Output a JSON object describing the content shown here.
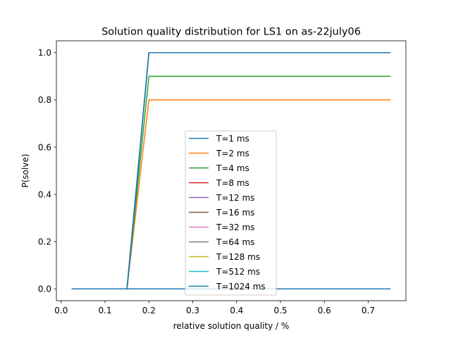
{
  "chart_data": {
    "type": "line",
    "title": "Solution quality distribution for LS1 on as-22july06",
    "xlabel": "relative solution quality / %",
    "ylabel": "P(solve)",
    "xlim": [
      -0.011,
      0.786
    ],
    "ylim": [
      -0.05,
      1.05
    ],
    "xticks": [
      0.0,
      0.1,
      0.2,
      0.3,
      0.4,
      0.5,
      0.6,
      0.7
    ],
    "xtick_labels": [
      "0.0",
      "0.1",
      "0.2",
      "0.3",
      "0.4",
      "0.5",
      "0.6",
      "0.7"
    ],
    "yticks": [
      0.0,
      0.2,
      0.4,
      0.6,
      0.8,
      1.0
    ],
    "ytick_labels": [
      "0.0",
      "0.2",
      "0.4",
      "0.6",
      "0.8",
      "1.0"
    ],
    "grid": false,
    "legend_position": "lower center",
    "series": [
      {
        "name": "T=1 ms",
        "color": "#1f77b4",
        "x": [
          0.025,
          0.75
        ],
        "y": [
          0.0,
          0.0
        ]
      },
      {
        "name": "T=2 ms",
        "color": "#ff7f0e",
        "x": [
          0.025,
          0.15,
          0.2,
          0.75
        ],
        "y": [
          0.0,
          0.0,
          0.8,
          0.8
        ]
      },
      {
        "name": "T=4 ms",
        "color": "#2ca02c",
        "x": [
          0.025,
          0.15,
          0.2,
          0.75
        ],
        "y": [
          0.0,
          0.0,
          0.9,
          0.9
        ]
      },
      {
        "name": "T=8 ms",
        "color": "#d62728",
        "x": [
          0.025,
          0.15,
          0.2,
          0.75
        ],
        "y": [
          0.0,
          0.0,
          1.0,
          1.0
        ]
      },
      {
        "name": "T=12 ms",
        "color": "#9467bd",
        "x": [
          0.025,
          0.15,
          0.2,
          0.75
        ],
        "y": [
          0.0,
          0.0,
          1.0,
          1.0
        ]
      },
      {
        "name": "T=16 ms",
        "color": "#8c564b",
        "x": [
          0.025,
          0.15,
          0.2,
          0.75
        ],
        "y": [
          0.0,
          0.0,
          1.0,
          1.0
        ]
      },
      {
        "name": "T=32 ms",
        "color": "#e377c2",
        "x": [
          0.025,
          0.15,
          0.2,
          0.75
        ],
        "y": [
          0.0,
          0.0,
          1.0,
          1.0
        ]
      },
      {
        "name": "T=64 ms",
        "color": "#7f7f7f",
        "x": [
          0.025,
          0.15,
          0.2,
          0.75
        ],
        "y": [
          0.0,
          0.0,
          1.0,
          1.0
        ]
      },
      {
        "name": "T=128 ms",
        "color": "#bcbd22",
        "x": [
          0.025,
          0.15,
          0.2,
          0.75
        ],
        "y": [
          0.0,
          0.0,
          1.0,
          1.0
        ]
      },
      {
        "name": "T=512 ms",
        "color": "#17becf",
        "x": [
          0.025,
          0.15,
          0.2,
          0.75
        ],
        "y": [
          0.0,
          0.0,
          1.0,
          1.0
        ]
      },
      {
        "name": "T=1024 ms",
        "color": "#1f77b4",
        "x": [
          0.025,
          0.15,
          0.2,
          0.75
        ],
        "y": [
          0.0,
          0.0,
          1.0,
          1.0
        ]
      }
    ]
  }
}
